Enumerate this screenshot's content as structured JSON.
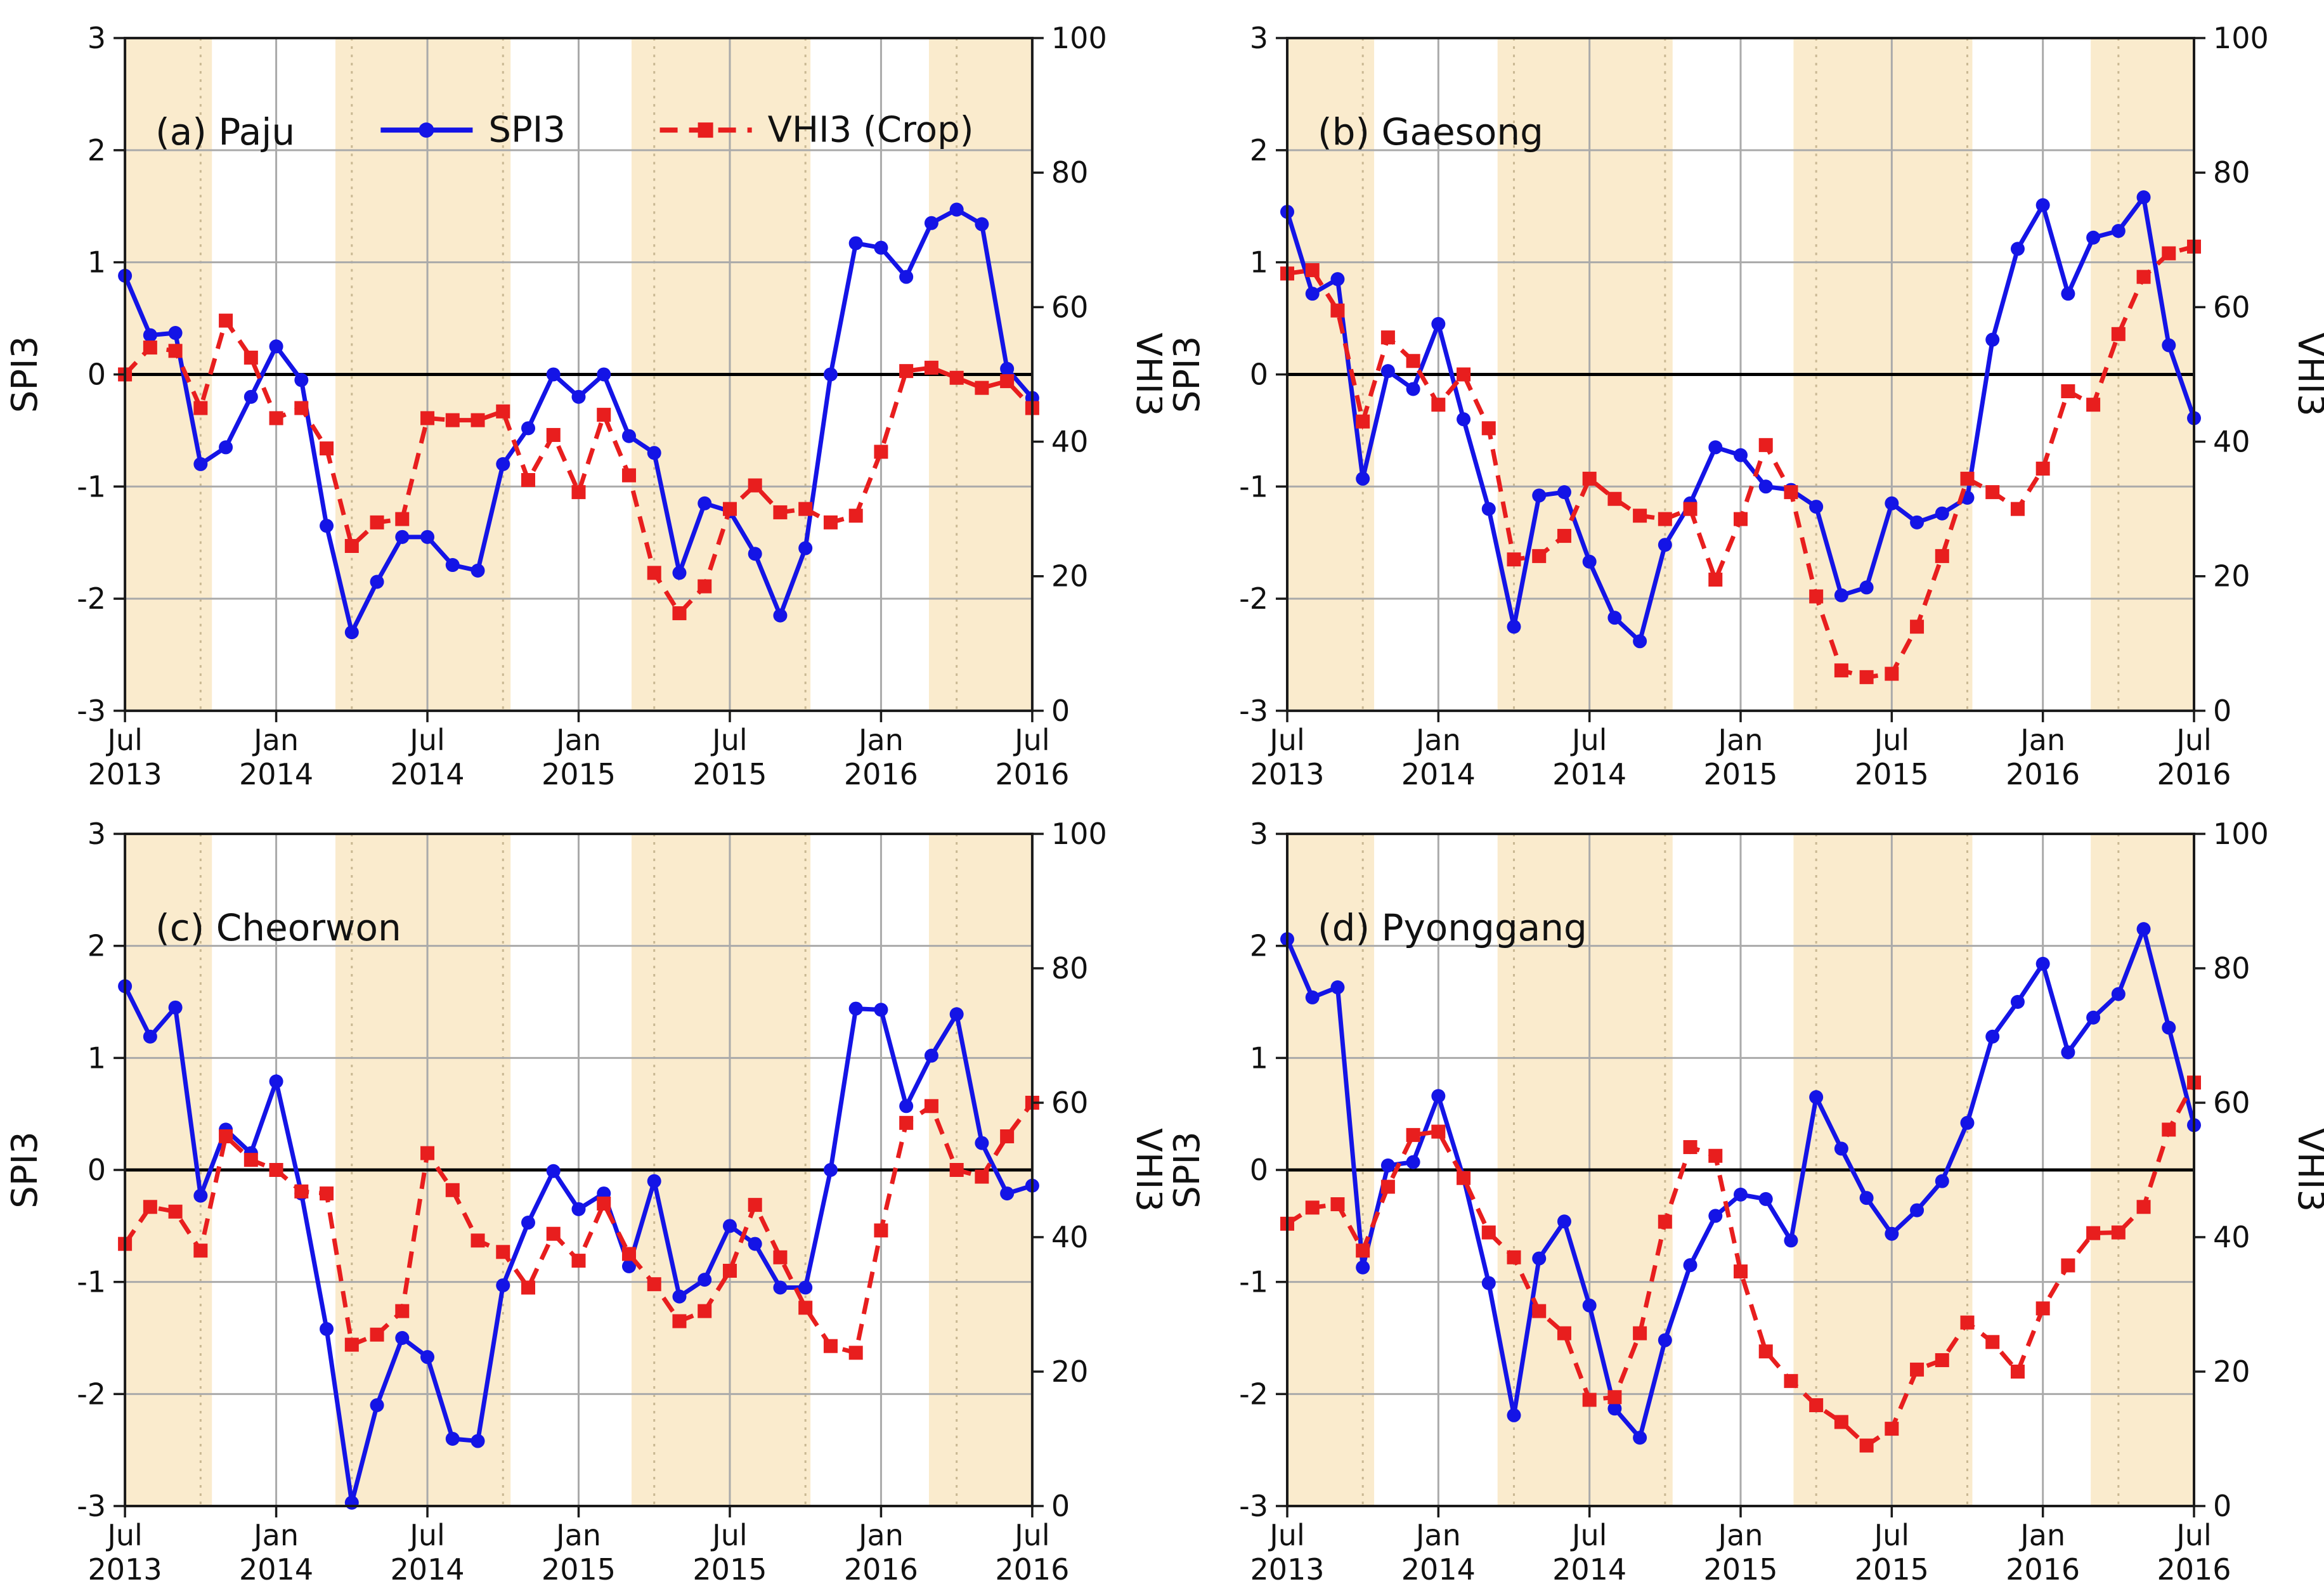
{
  "figure": {
    "colors": {
      "spi3_line": "#1414e6",
      "vhi3_line": "#e81e1e",
      "shaded_band": "#faebcd",
      "grid_line": "#aaaaaa",
      "dashed_vline": "#c9b893",
      "zero_line": "#000000",
      "spine": "#1a1a1a",
      "background": "#ffffff"
    },
    "legend": {
      "spi3_label": "SPI3",
      "vhi3_label": "VHI3 (Crop)",
      "shown_on_panel": 0
    },
    "y_left": {
      "label": "SPI3",
      "min": -3,
      "max": 3,
      "ticks": [
        "3",
        "2",
        "1",
        "0",
        "-1",
        "-2",
        "-3"
      ]
    },
    "y_right": {
      "label": "VHI3",
      "min": 0,
      "max": 100,
      "ticks": [
        "100",
        "80",
        "60",
        "40",
        "20",
        "0"
      ]
    },
    "x_axis": {
      "tick_months": [
        "Jul",
        "Jan",
        "Jul",
        "Jan",
        "Jul",
        "Jan",
        "Jul"
      ],
      "tick_years": [
        "2013",
        "2014",
        "2014",
        "2015",
        "2015",
        "2016",
        "2016"
      ],
      "n_points": 37
    },
    "shaded_bands_month_spans": [
      [
        0,
        3.45
      ],
      [
        8.35,
        15.3
      ],
      [
        20.1,
        27.2
      ],
      [
        31.9,
        36
      ]
    ],
    "dashed_gridline_months": [
      3,
      9,
      15,
      21,
      27,
      33
    ],
    "solid_gridline_months": [
      6,
      12,
      18,
      24,
      30
    ]
  },
  "chart_data": {
    "type": "line",
    "x": [
      "2013-07",
      "2013-08",
      "2013-09",
      "2013-10",
      "2013-11",
      "2013-12",
      "2014-01",
      "2014-02",
      "2014-03",
      "2014-04",
      "2014-05",
      "2014-06",
      "2014-07",
      "2014-08",
      "2014-09",
      "2014-10",
      "2014-11",
      "2014-12",
      "2015-01",
      "2015-02",
      "2015-03",
      "2015-04",
      "2015-05",
      "2015-06",
      "2015-07",
      "2015-08",
      "2015-09",
      "2015-10",
      "2015-11",
      "2015-12",
      "2016-01",
      "2016-02",
      "2016-03",
      "2016-04",
      "2016-05",
      "2016-06",
      "2016-07"
    ],
    "panels": [
      {
        "title": "(a) Paju",
        "series": [
          {
            "name": "SPI3",
            "axis": "left",
            "values": [
              0.88,
              0.35,
              0.37,
              -0.8,
              -0.65,
              -0.2,
              0.25,
              -0.05,
              -1.35,
              -2.3,
              -1.85,
              -1.45,
              -1.45,
              -1.7,
              -1.75,
              -0.8,
              -0.48,
              0.0,
              -0.2,
              0.0,
              -0.55,
              -0.7,
              -1.77,
              -1.15,
              -1.22,
              -1.6,
              -2.15,
              -1.55,
              0.0,
              1.17,
              1.13,
              0.87,
              1.35,
              1.47,
              1.34,
              0.05,
              -0.21
            ]
          },
          {
            "name": "VHI3 (Crop)",
            "axis": "right",
            "values": [
              50,
              54,
              53.5,
              45,
              58,
              52.5,
              43.5,
              45,
              39,
              24.5,
              28,
              28.5,
              43.5,
              43.2,
              43.2,
              44.5,
              34.3,
              41,
              32.5,
              44,
              35,
              20.5,
              14.5,
              18.5,
              30,
              33.5,
              29.5,
              30,
              28,
              29,
              38.5,
              50.5,
              51,
              49.5,
              48,
              49,
              45
            ]
          }
        ]
      },
      {
        "title": "(b) Gaesong",
        "series": [
          {
            "name": "SPI3",
            "axis": "left",
            "values": [
              1.45,
              0.72,
              0.85,
              -0.93,
              0.03,
              -0.13,
              0.45,
              -0.4,
              -1.2,
              -2.25,
              -1.08,
              -1.05,
              -1.67,
              -2.17,
              -2.38,
              -1.52,
              -1.15,
              -0.65,
              -0.72,
              -1.0,
              -1.03,
              -1.18,
              -1.97,
              -1.9,
              -1.15,
              -1.32,
              -1.24,
              -1.1,
              0.31,
              1.12,
              1.51,
              0.72,
              1.22,
              1.28,
              1.58,
              0.26,
              -0.39
            ]
          },
          {
            "name": "VHI3 (Crop)",
            "axis": "right",
            "values": [
              65,
              65.5,
              59.5,
              43,
              55.5,
              52,
              45.5,
              50,
              42,
              22.5,
              23,
              26,
              34.5,
              31.5,
              29,
              28.5,
              30,
              19.5,
              28.5,
              39.5,
              32.5,
              17,
              6,
              5,
              5.5,
              12.5,
              23,
              34.5,
              32.5,
              30,
              36,
              47.5,
              45.5,
              56,
              64.5,
              68,
              69
            ]
          }
        ]
      },
      {
        "title": "(c) Cheorwon",
        "series": [
          {
            "name": "SPI3",
            "axis": "left",
            "values": [
              1.64,
              1.19,
              1.45,
              -0.23,
              0.36,
              0.15,
              0.79,
              -0.21,
              -1.42,
              -2.97,
              -2.1,
              -1.5,
              -1.67,
              -2.4,
              -2.42,
              -1.03,
              -0.47,
              -0.01,
              -0.35,
              -0.21,
              -0.86,
              -0.1,
              -1.13,
              -0.98,
              -0.5,
              -0.66,
              -1.05,
              -1.05,
              0.0,
              1.44,
              1.43,
              0.57,
              1.02,
              1.39,
              0.24,
              -0.21,
              -0.14
            ]
          },
          {
            "name": "VHI3 (Crop)",
            "axis": "right",
            "values": [
              39,
              44.5,
              43.8,
              38,
              55,
              51.5,
              50,
              46.8,
              46.5,
              24,
              25.5,
              29,
              52.5,
              47,
              39.5,
              37.8,
              32.5,
              40.5,
              36.5,
              45,
              37.5,
              33,
              27.5,
              29,
              35,
              44.8,
              37,
              29.5,
              23.8,
              22.8,
              41,
              57,
              59.5,
              50,
              49,
              55,
              60
            ]
          }
        ]
      },
      {
        "title": "(d) Pyonggang",
        "series": [
          {
            "name": "SPI3",
            "axis": "left",
            "values": [
              2.06,
              1.54,
              1.63,
              -0.87,
              0.04,
              0.07,
              0.66,
              -0.07,
              -1.01,
              -2.19,
              -0.79,
              -0.46,
              -1.21,
              -2.13,
              -2.39,
              -1.52,
              -0.85,
              -0.41,
              -0.22,
              -0.26,
              -0.63,
              0.65,
              0.19,
              -0.25,
              -0.57,
              -0.36,
              -0.1,
              0.42,
              1.19,
              1.5,
              1.84,
              1.05,
              1.36,
              1.57,
              2.15,
              1.27,
              0.4
            ]
          },
          {
            "name": "VHI3 (Crop)",
            "axis": "right",
            "values": [
              42,
              44.4,
              44.9,
              38,
              47.5,
              55.2,
              55.7,
              48.8,
              40.7,
              37,
              29,
              25.7,
              15.8,
              16.2,
              25.7,
              42.3,
              53.4,
              52.1,
              34.9,
              23,
              18.6,
              15,
              12.5,
              9,
              11.5,
              20.3,
              21.7,
              27.3,
              24.4,
              20,
              29.4,
              35.8,
              40.6,
              40.7,
              44.5,
              56,
              63
            ]
          }
        ]
      }
    ]
  }
}
